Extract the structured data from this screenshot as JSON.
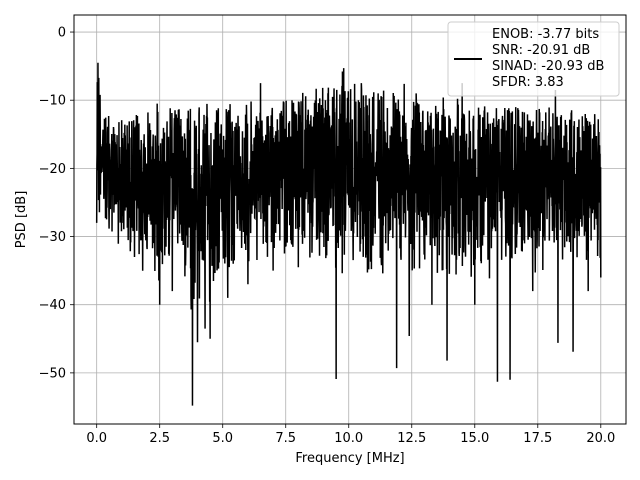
{
  "chart_data": {
    "type": "line",
    "title": "",
    "xlabel": "Frequency [MHz]",
    "ylabel": "PSD [dB]",
    "xlim": [
      -0.9,
      21.0
    ],
    "ylim": [
      -57.5,
      2.5
    ],
    "xticks": [
      0.0,
      2.5,
      5.0,
      7.5,
      10.0,
      12.5,
      15.0,
      17.5,
      20.0
    ],
    "xtick_labels": [
      "0.0",
      "2.5",
      "5.0",
      "7.5",
      "10.0",
      "12.5",
      "15.0",
      "17.5",
      "20.0"
    ],
    "yticks": [
      0,
      -10,
      -20,
      -30,
      -40,
      -50
    ],
    "ytick_labels": [
      "0",
      "−10",
      "−20",
      "−30",
      "−40",
      "−50"
    ],
    "grid": true,
    "legend_position": "top-right",
    "series": [
      {
        "name": "ENOB: -3.77 bits\nSNR: -20.91 dB\nSINAD: -20.93 dB\nSFDR: 3.83",
        "color": "#000000",
        "envelope_upper": [
          [
            0.0,
            0
          ],
          [
            0.1,
            -4
          ],
          [
            0.3,
            -12
          ],
          [
            1,
            -12
          ],
          [
            3,
            -11
          ],
          [
            5,
            -10
          ],
          [
            7,
            -10
          ],
          [
            9,
            -8
          ],
          [
            9.8,
            -5
          ],
          [
            11,
            -8
          ],
          [
            13,
            -9
          ],
          [
            15,
            -10
          ],
          [
            17,
            -11
          ],
          [
            19,
            -11
          ],
          [
            20,
            -12
          ]
        ],
        "envelope_lower": [
          [
            0.0,
            -28
          ],
          [
            0.3,
            -32
          ],
          [
            1,
            -33
          ],
          [
            2,
            -38
          ],
          [
            3,
            -36
          ],
          [
            4,
            -44
          ],
          [
            5,
            -38
          ],
          [
            7,
            -34
          ],
          [
            9,
            -36
          ],
          [
            11,
            -37
          ],
          [
            13,
            -38
          ],
          [
            15,
            -38
          ],
          [
            17,
            -36
          ],
          [
            19,
            -36
          ],
          [
            20,
            -34
          ]
        ],
        "dips": [
          [
            0.0,
            -28
          ],
          [
            1.5,
            -33
          ],
          [
            2.5,
            -40
          ],
          [
            3.0,
            -38
          ],
          [
            3.8,
            -54.8
          ],
          [
            4.0,
            -45.5
          ],
          [
            4.3,
            -43.5
          ],
          [
            4.5,
            -45
          ],
          [
            5.2,
            -39
          ],
          [
            6.0,
            -37
          ],
          [
            7.0,
            -35
          ],
          [
            8.0,
            -34.5
          ],
          [
            9.5,
            -50.9
          ],
          [
            11.9,
            -49.3
          ],
          [
            12.4,
            -44.6
          ],
          [
            13.3,
            -40
          ],
          [
            13.9,
            -48.2
          ],
          [
            15.0,
            -40
          ],
          [
            15.9,
            -51.3
          ],
          [
            16.4,
            -51
          ],
          [
            17.3,
            -38
          ],
          [
            18.3,
            -45.6
          ],
          [
            18.9,
            -46.9
          ],
          [
            19.5,
            -38
          ],
          [
            20.0,
            -36
          ]
        ],
        "peaks": [
          [
            0.0,
            0
          ],
          [
            0.05,
            -4.5
          ],
          [
            9.8,
            -5.3
          ],
          [
            6.5,
            -7.5
          ],
          [
            12.2,
            -7.6
          ],
          [
            18.2,
            -8.5
          ],
          [
            2.4,
            -10.5
          ],
          [
            14.5,
            -7.5
          ],
          [
            10.5,
            -7.5
          ]
        ]
      }
    ]
  }
}
